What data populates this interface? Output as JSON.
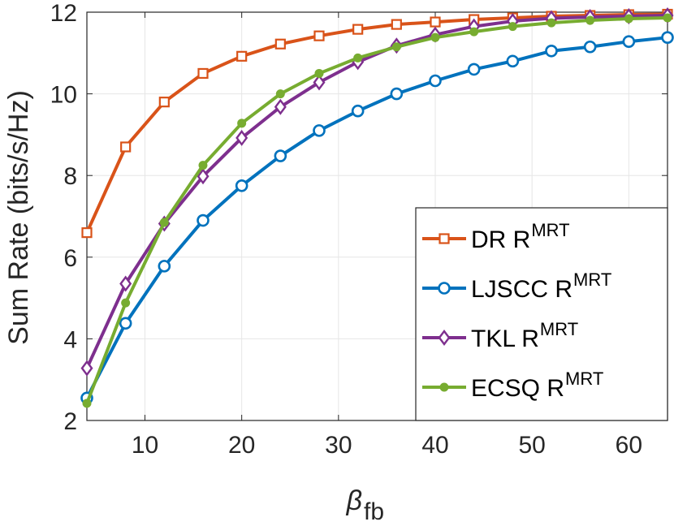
{
  "chart_data": {
    "type": "line",
    "xlabel": "β",
    "xlabel_sub": "fb",
    "ylabel": "Sum Rate (bits/s/Hz)",
    "xlim": [
      4,
      64
    ],
    "ylim": [
      2,
      12
    ],
    "xticks": [
      10,
      20,
      30,
      40,
      50,
      60
    ],
    "yticks": [
      2,
      4,
      6,
      8,
      10,
      12
    ],
    "grid": true,
    "legend_position": "bottom-right",
    "x": [
      4,
      8,
      12,
      16,
      20,
      24,
      28,
      32,
      36,
      40,
      44,
      48,
      52,
      56,
      60,
      64
    ],
    "series": [
      {
        "name": "DR R",
        "sup": "MRT",
        "color": "#D95319",
        "marker": "square",
        "values": [
          6.6,
          8.7,
          9.8,
          10.5,
          10.92,
          11.22,
          11.42,
          11.58,
          11.7,
          11.76,
          11.82,
          11.86,
          11.9,
          11.92,
          11.94,
          11.95
        ]
      },
      {
        "name": "LJSCC R",
        "sup": "MRT",
        "color": "#0072BD",
        "marker": "circle",
        "values": [
          2.55,
          4.38,
          5.78,
          6.9,
          7.75,
          8.48,
          9.1,
          9.58,
          10.0,
          10.32,
          10.6,
          10.8,
          11.05,
          11.15,
          11.28,
          11.38
        ]
      },
      {
        "name": "TKL R",
        "sup": "MRT",
        "color": "#7E2F8E",
        "marker": "diamond",
        "values": [
          3.28,
          5.35,
          6.82,
          7.98,
          8.92,
          9.68,
          10.28,
          10.78,
          11.18,
          11.45,
          11.65,
          11.78,
          11.85,
          11.88,
          11.9,
          11.92
        ]
      },
      {
        "name": "ECSQ R",
        "sup": "MRT",
        "color": "#77AC30",
        "marker": "dot",
        "values": [
          2.42,
          4.88,
          6.85,
          8.25,
          9.28,
          10.0,
          10.5,
          10.88,
          11.15,
          11.38,
          11.52,
          11.65,
          11.74,
          11.8,
          11.84,
          11.86
        ]
      }
    ]
  }
}
